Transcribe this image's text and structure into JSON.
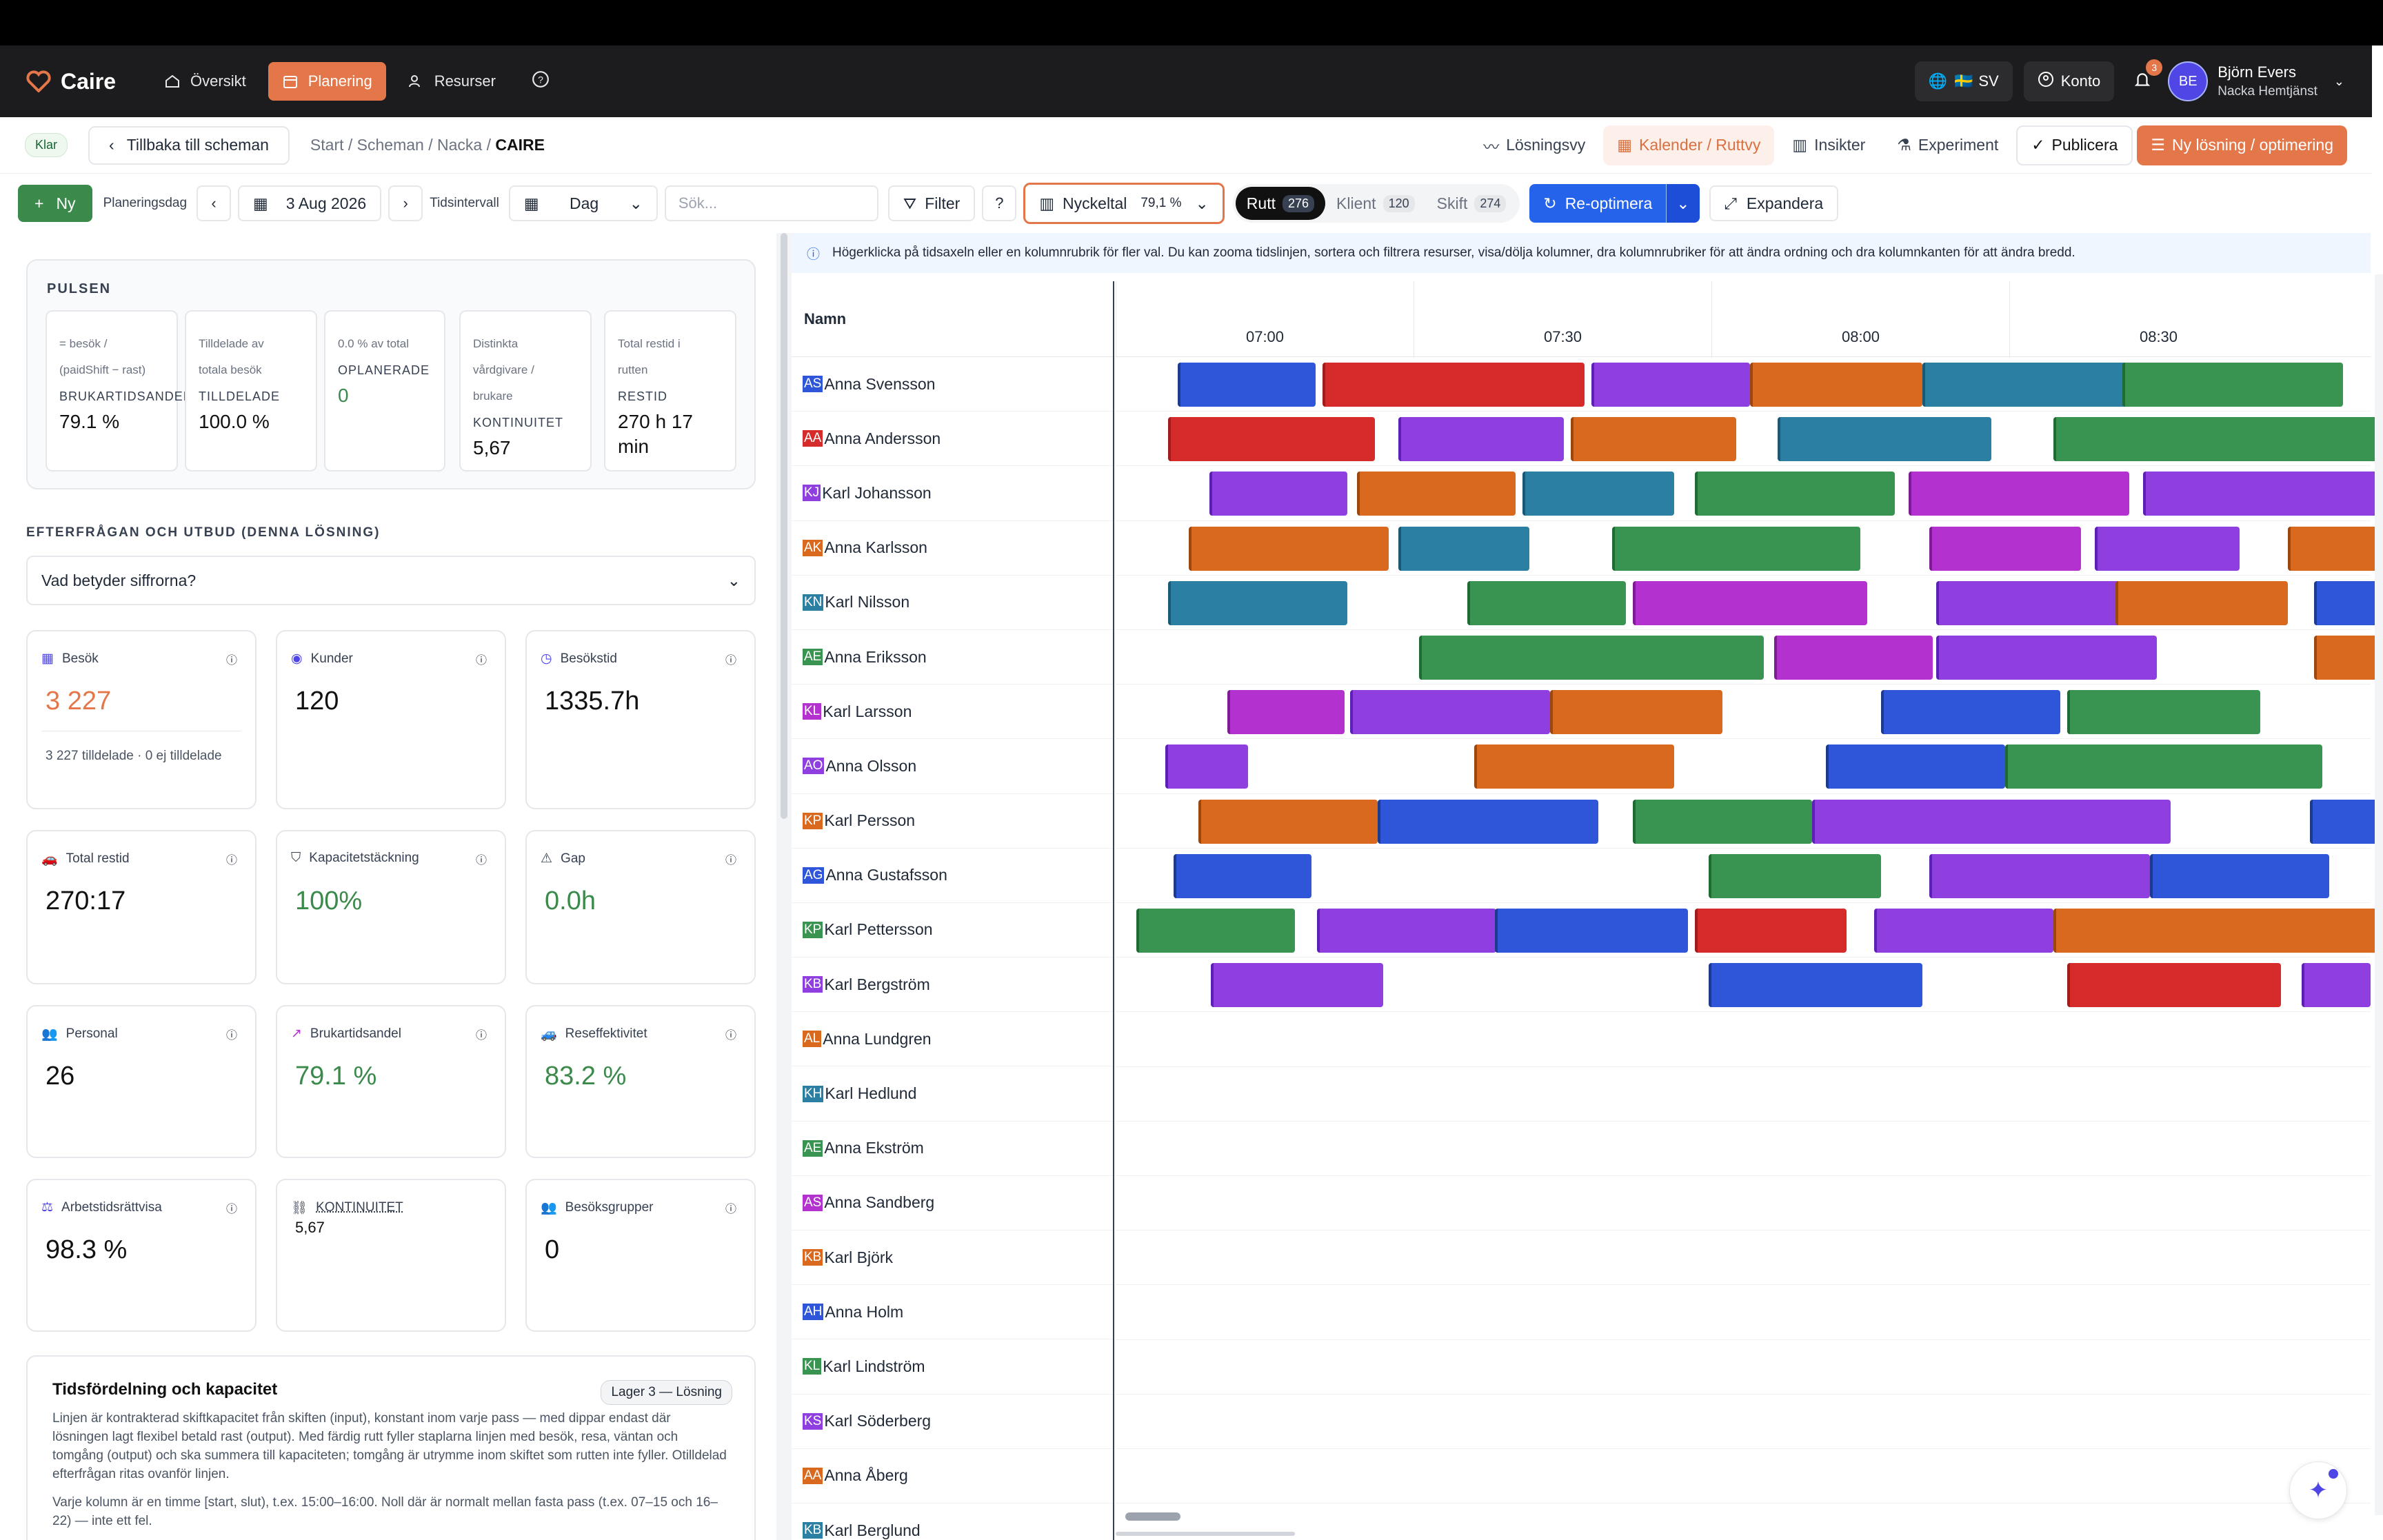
{
  "app": {
    "name": "Caire"
  },
  "nav": {
    "items": [
      {
        "label": "Översikt"
      },
      {
        "label": "Planering"
      },
      {
        "label": "Resurser"
      }
    ],
    "lang": "SV",
    "account": "Konto",
    "notif_count": "3",
    "user": {
      "initials": "BE",
      "name": "Björn Evers",
      "org": "Nacka Hemtjänst"
    }
  },
  "toolbar1": {
    "status": "Klar",
    "back": "Tillbaka till scheman",
    "crumbs": [
      "Start",
      "Scheman",
      "Nacka",
      "CAIRE"
    ],
    "losningsvy": "Lösningsvy",
    "kalender": "Kalender / Ruttvy",
    "insikter": "Insikter",
    "experiment": "Experiment",
    "publicera": "Publicera",
    "ny_losning": "Ny lösning / optimering"
  },
  "toolbar2": {
    "ny": "Ny",
    "planeringsdag": "Planeringsdag",
    "date": "3 Aug 2026",
    "tidsintervall": "Tidsintervall",
    "interval": "Dag",
    "search_placeholder": "Sök...",
    "filter": "Filter",
    "nyckeltal": "Nyckeltal",
    "nyckeltal_val": "79,1 %",
    "tabs": [
      {
        "label": "Rutt",
        "count": "276"
      },
      {
        "label": "Klient",
        "count": "120"
      },
      {
        "label": "Skift",
        "count": "274"
      }
    ],
    "reoptimera": "Re-optimera",
    "expandera": "Expandera"
  },
  "pulsen": {
    "title": "PULSEN",
    "cards": [
      {
        "l1": "= besök /",
        "l2": "(paidShift − rast)",
        "k": "BRUKARTIDSANDEL",
        "v": "79.1 %"
      },
      {
        "l1": "Tilldelade av",
        "l2": "totala besök",
        "k": "TILLDELADE",
        "v": "100.0 %"
      },
      {
        "l1": "0.0 % av total",
        "l2": "",
        "k": "OPLANERADE",
        "v": "0"
      },
      {
        "l1": "Distinkta",
        "l2": "vårdgivare /",
        "l3": "brukare",
        "k": "KONTINUITET",
        "v": "5,67"
      },
      {
        "l1": "Total restid i",
        "l2": "rutten",
        "k": "RESTID",
        "v": "270 h 17",
        "v2": "min"
      }
    ]
  },
  "efterfragan": {
    "title": "EFTERFRÅGAN OCH UTBUD (DENNA LÖSNING)",
    "dropdown": "Vad betyder siffrorna?"
  },
  "kpis": [
    {
      "label": "Besök",
      "value": "3 227",
      "sub": "3 227 tilldelade · 0 ej tilldelade"
    },
    {
      "label": "Kunder",
      "value": "120"
    },
    {
      "label": "Besökstid",
      "value": "1335.7h"
    },
    {
      "label": "Total restid",
      "value": "270:17"
    },
    {
      "label": "Kapacitetstäckning",
      "value": "100%"
    },
    {
      "label": "Gap",
      "value": "0.0h"
    },
    {
      "label": "Personal",
      "value": "26"
    },
    {
      "label": "Brukartidsandel",
      "value": "79.1 %"
    },
    {
      "label": "Reseffektivitet",
      "value": "83.2 %"
    },
    {
      "label": "Arbetstidsrättvisa",
      "value": "98.3 %"
    },
    {
      "label": "KONTINUITET",
      "value": "5,67"
    },
    {
      "label": "Besöksgrupper",
      "value": "0"
    }
  ],
  "tid": {
    "title": "Tidsfördelning och kapacitet",
    "tag": "Lager 3 — Lösning",
    "p1": "Linjen är kontrakterad skiftkapacitet från skiften (input), konstant inom varje pass — med dippar endast där lösningen lagt flexibel betald rast (output). Med färdig rutt fyller staplarna linjen med besök, resa, väntan och tomgång (output) och ska summera till kapaciteten; tomgång är utrymme inom skiftet som rutten inte fyller. Otilldelad efterfrågan ritas ovanför linjen.",
    "p2": "Varje kolumn är en timme [start, slut), t.ex. 15:00–16:00. Noll där är normalt mellan fasta pass (t.ex. 07–15 och 16–22) — inte ett fel."
  },
  "grid": {
    "info": "Högerklicka på tidsaxeln eller en kolumnrubrik för fler val. Du kan zooma tidslinjen, sortera och filtrera resurser, visa/dölja kolumner, dra kolumnrubriker för att ändra ordning och dra kolumnkanten för att ändra bredd.",
    "name_header": "Namn",
    "times": [
      "07:00",
      "07:30",
      "08:00",
      "08:30"
    ],
    "resources": [
      {
        "ini": "AS",
        "name": "Anna Svensson",
        "color": "#2f56d9"
      },
      {
        "ini": "AA",
        "name": "Anna Andersson",
        "color": "#d52b2b"
      },
      {
        "ini": "KJ",
        "name": "Karl Johansson",
        "color": "#8f3fe0"
      },
      {
        "ini": "AK",
        "name": "Anna Karlsson",
        "color": "#d8691e"
      },
      {
        "ini": "KN",
        "name": "Karl Nilsson",
        "color": "#2b7fa3"
      },
      {
        "ini": "AE",
        "name": "Anna Eriksson",
        "color": "#399451"
      },
      {
        "ini": "KL",
        "name": "Karl Larsson",
        "color": "#b331cf"
      },
      {
        "ini": "AO",
        "name": "Anna Olsson",
        "color": "#8f3fe0"
      },
      {
        "ini": "KP",
        "name": "Karl Persson",
        "color": "#d8691e"
      },
      {
        "ini": "AG",
        "name": "Anna Gustafsson",
        "color": "#2f56d9"
      },
      {
        "ini": "KP",
        "name": "Karl Pettersson",
        "color": "#399451"
      },
      {
        "ini": "KB",
        "name": "Karl Bergström",
        "color": "#8f3fe0"
      },
      {
        "ini": "AL",
        "name": "Anna Lundgren",
        "color": "#d8691e"
      },
      {
        "ini": "KH",
        "name": "Karl Hedlund",
        "color": "#2b7fa3"
      },
      {
        "ini": "AE",
        "name": "Anna Ekström",
        "color": "#399451"
      },
      {
        "ini": "AS",
        "name": "Anna Sandberg",
        "color": "#b331cf"
      },
      {
        "ini": "KB",
        "name": "Karl Björk",
        "color": "#d8691e"
      },
      {
        "ini": "AH",
        "name": "Anna Holm",
        "color": "#2f56d9"
      },
      {
        "ini": "KL",
        "name": "Karl Lindström",
        "color": "#399451"
      },
      {
        "ini": "KS",
        "name": "Karl Söderberg",
        "color": "#8f3fe0"
      },
      {
        "ini": "AA",
        "name": "Anna Åberg",
        "color": "#d8691e"
      },
      {
        "ini": "KB",
        "name": "Karl Berglund",
        "color": "#2b7fa3"
      }
    ]
  }
}
